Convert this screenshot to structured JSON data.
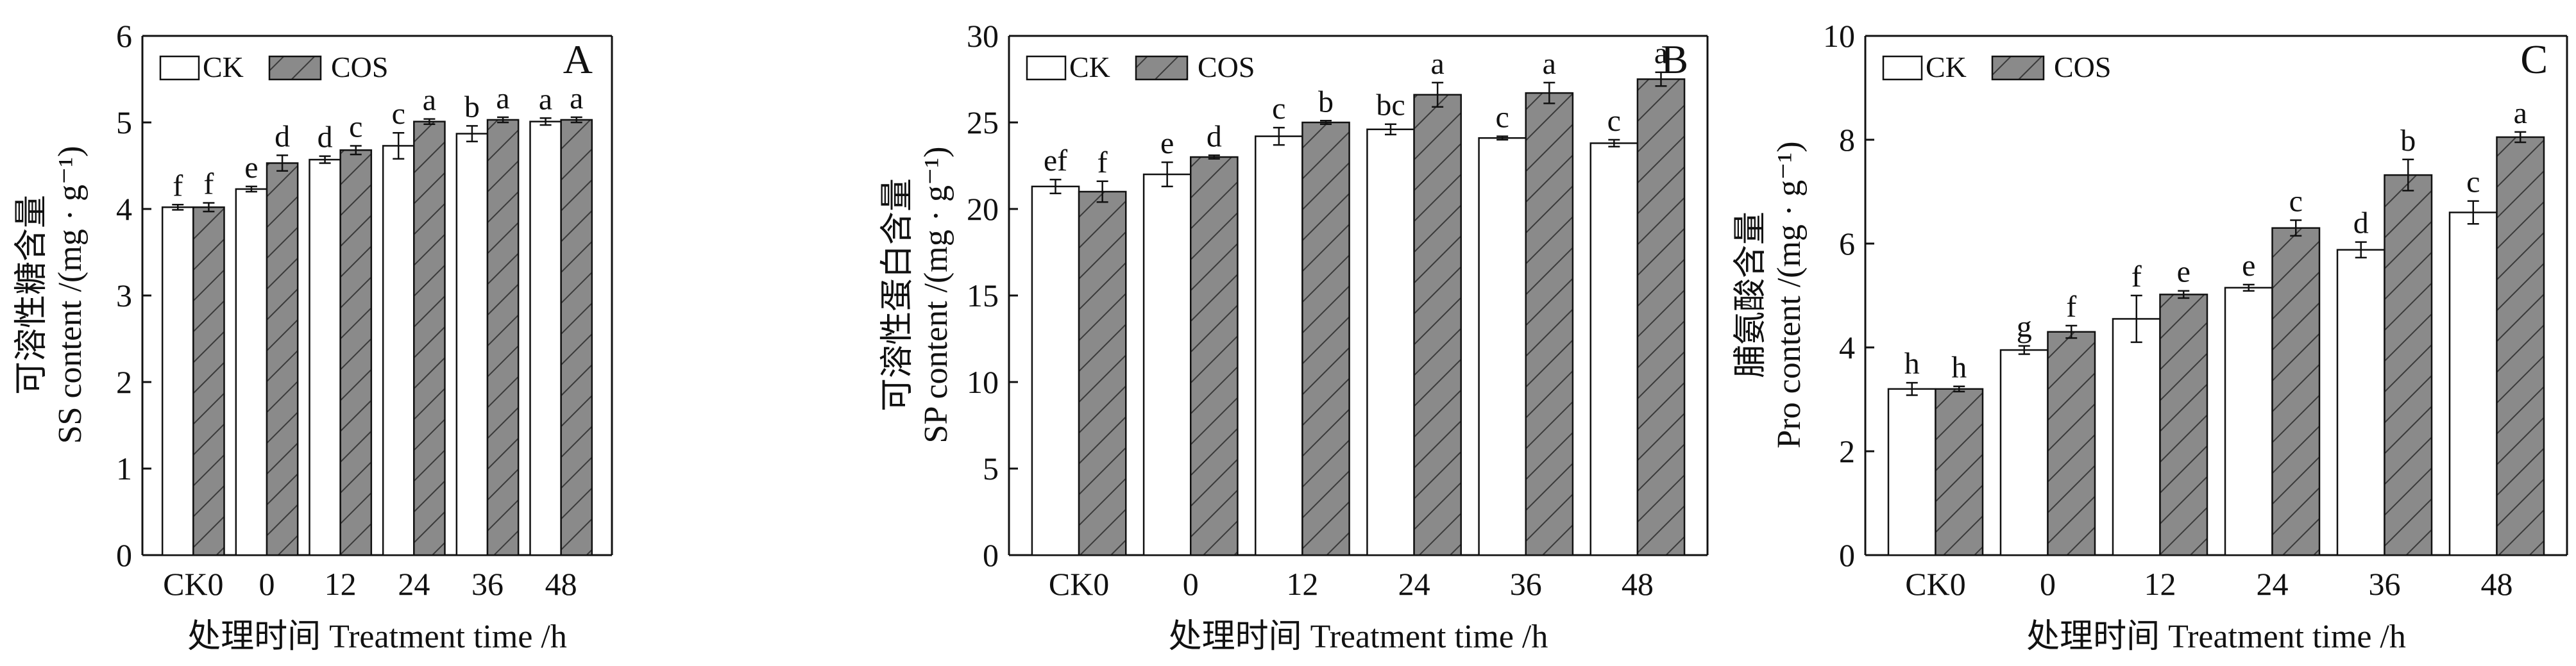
{
  "x_axis_label": "处理时间 Treatment time /h",
  "legend": [
    "CK",
    "COS"
  ],
  "colors": {
    "CK": "#ffffff",
    "COS": "#8a8a8a",
    "axis": "#111111"
  },
  "chart_data": [
    {
      "panel": "A",
      "type": "bar",
      "categories": [
        "CK0",
        "0",
        "12",
        "24",
        "36",
        "48"
      ],
      "ylabel_cn": "可溶性糖含量",
      "ylabel_en": "SS content /(mg · g⁻¹)",
      "ylim": [
        0,
        6
      ],
      "yticks": [
        0,
        1,
        2,
        3,
        4,
        5,
        6
      ],
      "series": [
        {
          "name": "CK",
          "values": [
            4.02,
            4.23,
            4.57,
            4.73,
            4.87,
            5.01
          ],
          "errors": [
            0.03,
            0.03,
            0.04,
            0.15,
            0.09,
            0.04
          ],
          "letters": [
            "f",
            "e",
            "d",
            "c",
            "b",
            "a"
          ]
        },
        {
          "name": "COS",
          "values": [
            4.02,
            4.53,
            4.68,
            5.01,
            5.03,
            5.03
          ],
          "errors": [
            0.05,
            0.09,
            0.05,
            0.03,
            0.03,
            0.03
          ],
          "letters": [
            "f",
            "d",
            "c",
            "a",
            "a",
            "a"
          ]
        }
      ]
    },
    {
      "panel": "B",
      "type": "bar",
      "categories": [
        "CK0",
        "0",
        "12",
        "24",
        "36",
        "48"
      ],
      "ylabel_cn": "可溶性蛋白含量",
      "ylabel_en": "SP content /(mg · g⁻¹)",
      "ylim": [
        0,
        30
      ],
      "yticks": [
        0,
        5,
        10,
        15,
        20,
        25,
        30
      ],
      "series": [
        {
          "name": "CK",
          "values": [
            21.3,
            22.0,
            24.2,
            24.6,
            24.1,
            23.8
          ],
          "errors": [
            0.4,
            0.7,
            0.5,
            0.3,
            0.1,
            0.2
          ],
          "letters": [
            "ef",
            "e",
            "c",
            "bc",
            "c",
            "c"
          ]
        },
        {
          "name": "COS",
          "values": [
            21.0,
            23.0,
            25.0,
            26.6,
            26.7,
            27.5
          ],
          "errors": [
            0.6,
            0.1,
            0.1,
            0.7,
            0.6,
            0.4
          ],
          "letters": [
            "f",
            "d",
            "b",
            "a",
            "a",
            "a"
          ]
        }
      ]
    },
    {
      "panel": "C",
      "type": "bar",
      "categories": [
        "CK0",
        "0",
        "12",
        "24",
        "36",
        "48"
      ],
      "ylabel_cn": "脯氨酸含量",
      "ylabel_en": "Pro content /(mg · g⁻¹)",
      "ylim": [
        0,
        10
      ],
      "yticks": [
        0,
        2,
        4,
        6,
        8,
        10
      ],
      "series": [
        {
          "name": "CK",
          "values": [
            3.2,
            3.95,
            4.55,
            5.15,
            5.88,
            6.6
          ],
          "errors": [
            0.12,
            0.08,
            0.45,
            0.06,
            0.15,
            0.22
          ],
          "letters": [
            "h",
            "g",
            "f",
            "e",
            "d",
            "c"
          ]
        },
        {
          "name": "COS",
          "values": [
            3.2,
            4.3,
            5.02,
            6.3,
            7.32,
            8.05
          ],
          "errors": [
            0.05,
            0.12,
            0.07,
            0.15,
            0.3,
            0.1
          ],
          "letters": [
            "h",
            "f",
            "e",
            "c",
            "b",
            "a"
          ]
        }
      ]
    }
  ]
}
